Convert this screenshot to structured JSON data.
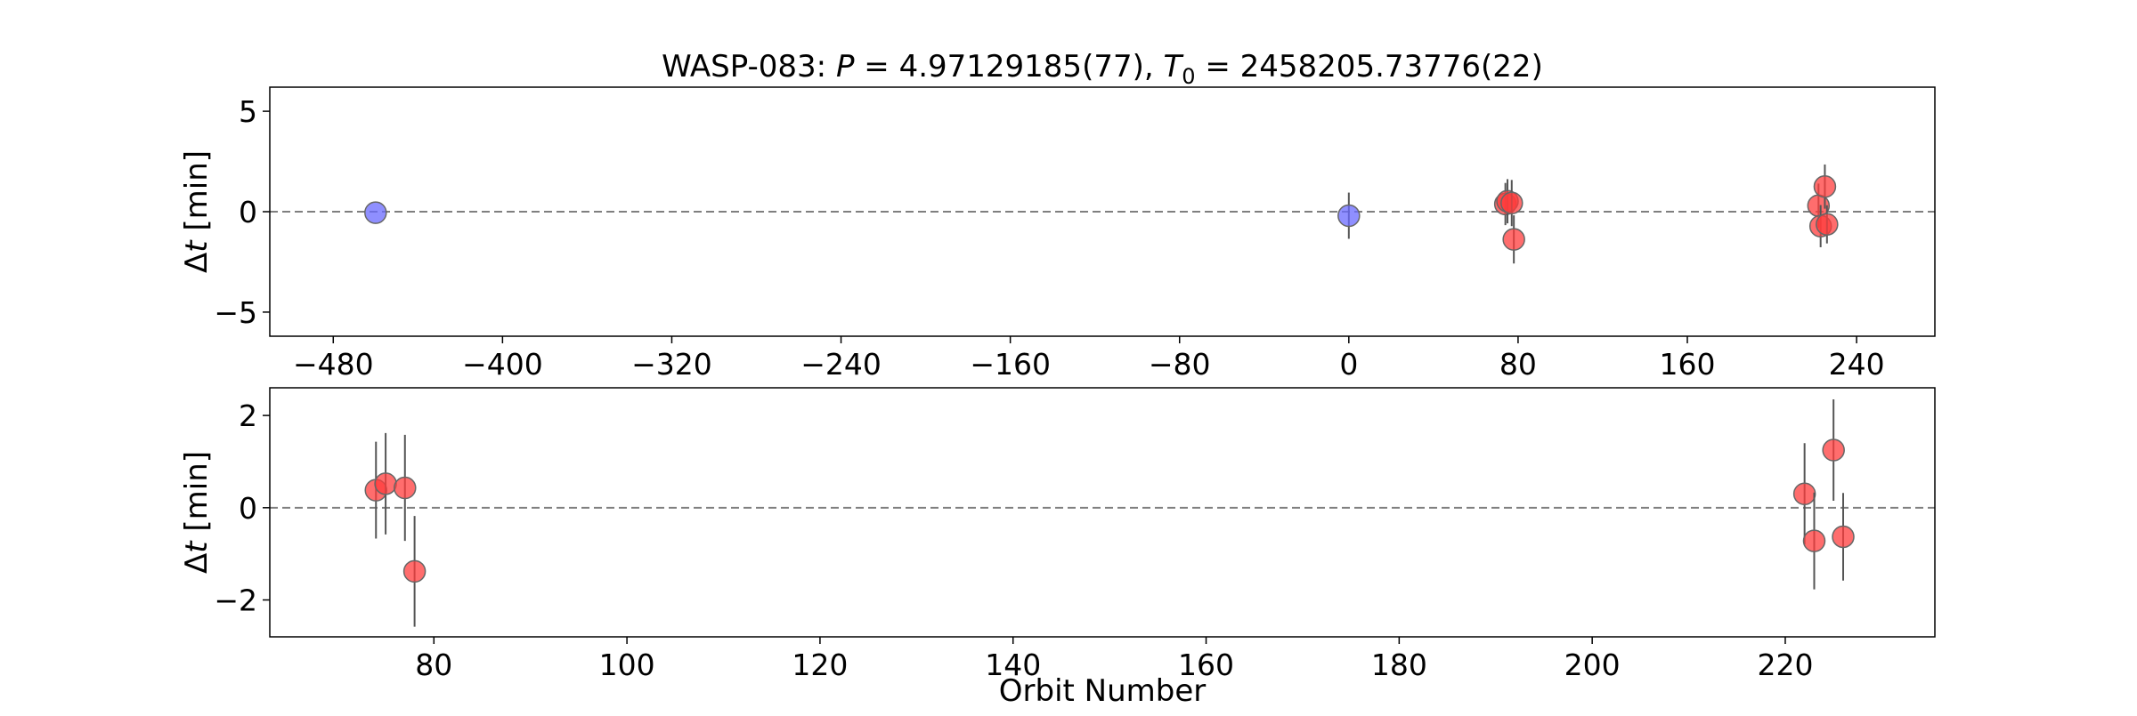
{
  "chart_data": {
    "title": {
      "prefix": "WASP-083: ",
      "p_symbol": "P",
      "p_value": " = 4.97129185(77), ",
      "t_symbol": "T",
      "t_sub": "0",
      "t_value": " = 2458205.73776(22)"
    },
    "shared_xlabel": "Orbit Number",
    "colors": {
      "blue": "#6a6aff",
      "red": "#ff3c3c",
      "errorbar": "#555555",
      "zero_line": "#7f7f7f"
    },
    "panels": [
      {
        "type": "scatter",
        "ylabel_symbol": "Δ",
        "ylabel_italic": "t",
        "ylabel_unit": " [min]",
        "xlim": [
          -510,
          277
        ],
        "ylim": [
          -6.2,
          6.2
        ],
        "xticks": [
          -480,
          -400,
          -320,
          -240,
          -160,
          -80,
          0,
          80,
          160,
          240
        ],
        "xtick_labels": [
          "−480",
          "−400",
          "−320",
          "−240",
          "−160",
          "−80",
          "0",
          "80",
          "160",
          "240"
        ],
        "yticks": [
          5,
          0,
          -5
        ],
        "ytick_labels": [
          "5",
          "0",
          "−5"
        ],
        "zero_line": true,
        "series": [
          {
            "color": "blue",
            "points": [
              {
                "x": -460,
                "y": -0.05,
                "err": 0
              },
              {
                "x": 0,
                "y": -0.2,
                "err": 1.15
              }
            ]
          },
          {
            "color": "red",
            "points": [
              {
                "x": 74,
                "y": 0.38,
                "err": 1.05
              },
              {
                "x": 75,
                "y": 0.52,
                "err": 1.1
              },
              {
                "x": 77,
                "y": 0.43,
                "err": 1.15
              },
              {
                "x": 78,
                "y": -1.38,
                "err": 1.2
              },
              {
                "x": 222,
                "y": 0.3,
                "err": 1.1
              },
              {
                "x": 223,
                "y": -0.72,
                "err": 1.05
              },
              {
                "x": 225,
                "y": 1.25,
                "err": 1.1
              },
              {
                "x": 226,
                "y": -0.63,
                "err": 0.95
              }
            ]
          }
        ]
      },
      {
        "type": "scatter",
        "ylabel_symbol": "Δ",
        "ylabel_italic": "t",
        "ylabel_unit": " [min]",
        "xlim": [
          63,
          235.5
        ],
        "ylim": [
          -2.8,
          2.6
        ],
        "xticks": [
          80,
          100,
          120,
          140,
          160,
          180,
          200,
          220
        ],
        "xtick_labels": [
          "80",
          "100",
          "120",
          "140",
          "160",
          "180",
          "200",
          "220"
        ],
        "yticks": [
          2,
          0,
          -2
        ],
        "ytick_labels": [
          "2",
          "0",
          "−2"
        ],
        "zero_line": true,
        "series": [
          {
            "color": "red",
            "points": [
              {
                "x": 74,
                "y": 0.38,
                "err": 1.05
              },
              {
                "x": 75,
                "y": 0.52,
                "err": 1.1
              },
              {
                "x": 77,
                "y": 0.43,
                "err": 1.15
              },
              {
                "x": 78,
                "y": -1.38,
                "err": 1.2
              },
              {
                "x": 222,
                "y": 0.3,
                "err": 1.1
              },
              {
                "x": 223,
                "y": -0.72,
                "err": 1.05
              },
              {
                "x": 225,
                "y": 1.25,
                "err": 1.1
              },
              {
                "x": 226,
                "y": -0.63,
                "err": 0.95
              }
            ]
          }
        ]
      }
    ]
  }
}
